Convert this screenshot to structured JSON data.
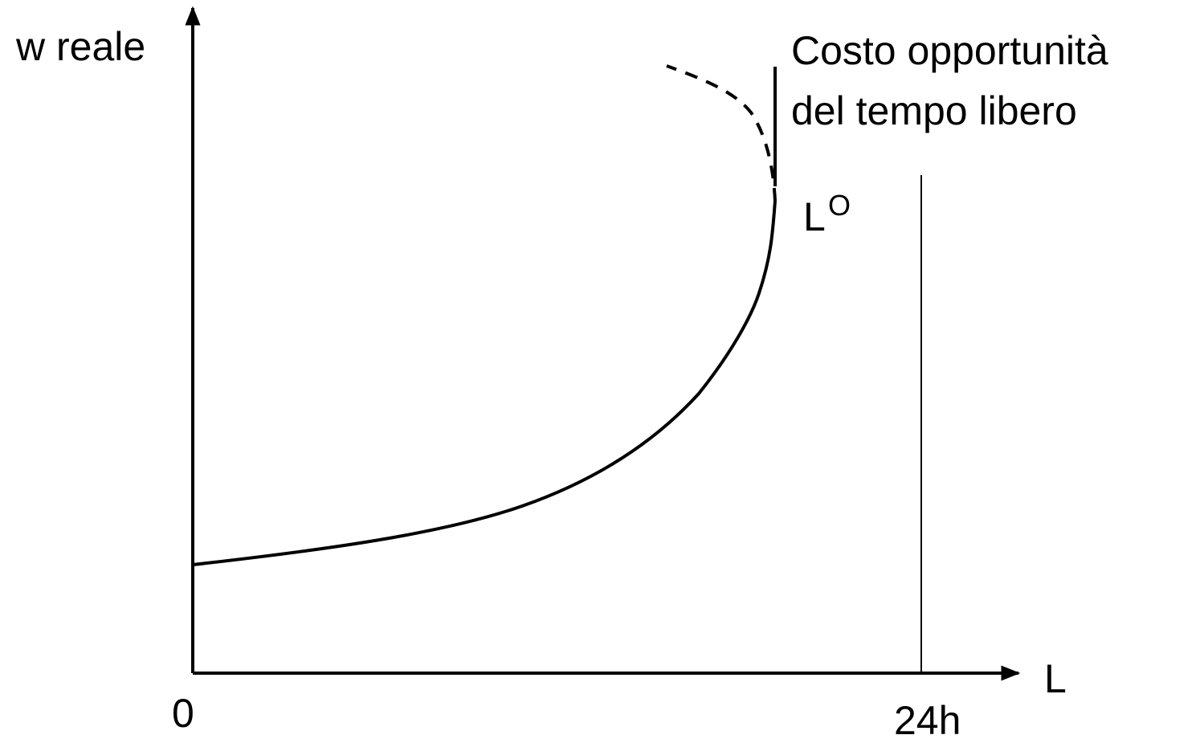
{
  "axes": {
    "y_label": "w reale",
    "x_label": "L",
    "origin": "0",
    "max_label": "24h"
  },
  "annotation": {
    "lines": [
      "Costo opportunità",
      "del tempo libero"
    ]
  },
  "curve_label": {
    "base": "L",
    "superscript": "O"
  }
}
